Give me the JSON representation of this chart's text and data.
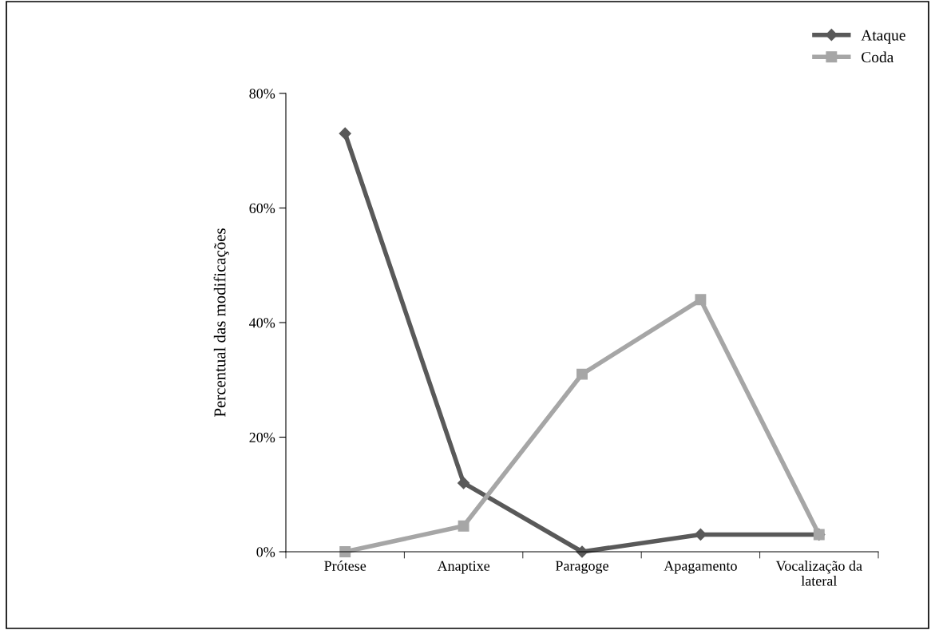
{
  "chart_data": {
    "type": "line",
    "ylabel": "Percentual das modificações",
    "categories": [
      "Prótese",
      "Anaptixe",
      "Paragoge",
      "Apagamento",
      "Vocalização da\nlateral"
    ],
    "series": [
      {
        "name": "Ataque",
        "color": "#595959",
        "marker": "diamond",
        "values": [
          73,
          12,
          0,
          3,
          3
        ]
      },
      {
        "name": "Coda",
        "color": "#a6a6a6",
        "marker": "square",
        "values": [
          0,
          4.5,
          31,
          44,
          3
        ]
      }
    ],
    "ylim": [
      0,
      80
    ],
    "yticks": [
      {
        "value": 0,
        "label": "0%"
      },
      {
        "value": 20,
        "label": "20%"
      },
      {
        "value": 40,
        "label": "40%"
      },
      {
        "value": 60,
        "label": "60%"
      },
      {
        "value": 80,
        "label": "80%"
      }
    ],
    "grid": false,
    "legend": "top right"
  }
}
